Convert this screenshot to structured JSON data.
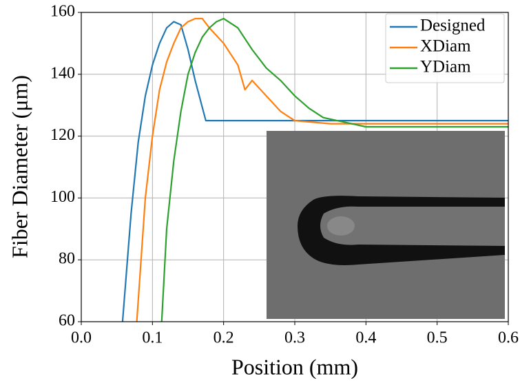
{
  "chart_data": {
    "type": "line",
    "xlabel": "Position (mm)",
    "ylabel": "Fiber Diameter (μm)",
    "xlim": [
      0,
      0.6
    ],
    "ylim": [
      60,
      160
    ],
    "xticks": [
      {
        "value": 0,
        "label": "0.0"
      },
      0.1,
      0.2,
      0.3,
      0.4,
      0.5,
      0.6
    ],
    "yticks": [
      60,
      80,
      100,
      120,
      140,
      160
    ],
    "grid": true,
    "legend": "upper right",
    "series": [
      {
        "name": "Designed",
        "color": "#1f77b4",
        "x": [
          0.058,
          0.07,
          0.08,
          0.09,
          0.1,
          0.11,
          0.12,
          0.13,
          0.14,
          0.15,
          0.16,
          0.175,
          0.6
        ],
        "values": [
          60,
          95,
          118,
          133,
          143,
          150,
          155,
          157,
          156,
          148,
          138,
          125,
          125
        ]
      },
      {
        "name": "XDiam",
        "color": "#ff7f0e",
        "x": [
          0.078,
          0.09,
          0.1,
          0.11,
          0.12,
          0.13,
          0.14,
          0.15,
          0.16,
          0.17,
          0.18,
          0.2,
          0.22,
          0.23,
          0.24,
          0.26,
          0.28,
          0.3,
          0.35,
          0.6
        ],
        "values": [
          60,
          100,
          120,
          135,
          144,
          150,
          155,
          157,
          158,
          158,
          155,
          150,
          143,
          135,
          138,
          133,
          128,
          125,
          124,
          124
        ]
      },
      {
        "name": "YDiam",
        "color": "#2ca02c",
        "x": [
          0.113,
          0.12,
          0.13,
          0.14,
          0.15,
          0.16,
          0.17,
          0.18,
          0.19,
          0.2,
          0.22,
          0.24,
          0.26,
          0.28,
          0.3,
          0.32,
          0.34,
          0.36,
          0.4,
          0.6
        ],
        "values": [
          60,
          90,
          112,
          128,
          140,
          147,
          152,
          155,
          157,
          158,
          155,
          148,
          142,
          138,
          133,
          129,
          126,
          125,
          123,
          123
        ]
      }
    ]
  }
}
